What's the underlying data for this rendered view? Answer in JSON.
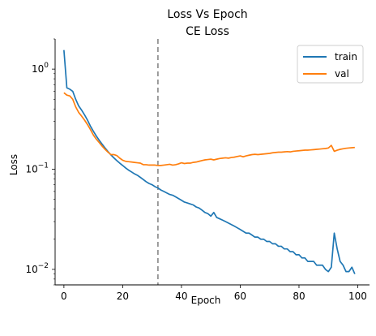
{
  "chart_data": {
    "type": "line",
    "title": "Loss Vs Epoch",
    "subtitle": "CE Loss",
    "xlabel": "Epoch",
    "ylabel": "Loss",
    "xlim": [
      -3,
      104
    ],
    "ylim": [
      0.007,
      2.0
    ],
    "yscale": "log",
    "xticks": [
      0,
      20,
      40,
      60,
      80,
      100
    ],
    "yticks": [
      {
        "value": 1,
        "base": "10",
        "exp": "0"
      },
      {
        "value": 0.1,
        "base": "10",
        "exp": "−1"
      },
      {
        "value": 0.01,
        "base": "10",
        "exp": "−2"
      }
    ],
    "grid": false,
    "legend_position": "top-right",
    "vline": {
      "x": 32,
      "color": "#7f7f7f",
      "style": "dashed"
    },
    "series": [
      {
        "name": "train",
        "color": "#1f77b4",
        "x": [
          0,
          1,
          2,
          3,
          4,
          5,
          6,
          7,
          8,
          9,
          10,
          11,
          12,
          13,
          14,
          15,
          16,
          17,
          18,
          19,
          20,
          21,
          22,
          23,
          24,
          25,
          26,
          27,
          28,
          29,
          30,
          31,
          32,
          33,
          34,
          35,
          36,
          37,
          38,
          39,
          40,
          41,
          42,
          43,
          44,
          45,
          46,
          47,
          48,
          49,
          50,
          51,
          52,
          53,
          54,
          55,
          56,
          57,
          58,
          59,
          60,
          61,
          62,
          63,
          64,
          65,
          66,
          67,
          68,
          69,
          70,
          71,
          72,
          73,
          74,
          75,
          76,
          77,
          78,
          79,
          80,
          81,
          82,
          83,
          84,
          85,
          86,
          87,
          88,
          89,
          90,
          91,
          92,
          93,
          94,
          95,
          96,
          97,
          98,
          99
        ],
        "values": [
          1.55,
          0.65,
          0.63,
          0.6,
          0.5,
          0.43,
          0.39,
          0.35,
          0.31,
          0.27,
          0.24,
          0.215,
          0.195,
          0.178,
          0.163,
          0.15,
          0.139,
          0.13,
          0.122,
          0.115,
          0.109,
          0.103,
          0.098,
          0.094,
          0.09,
          0.087,
          0.083,
          0.079,
          0.075,
          0.072,
          0.07,
          0.067,
          0.065,
          0.062,
          0.06,
          0.058,
          0.056,
          0.055,
          0.053,
          0.051,
          0.049,
          0.047,
          0.046,
          0.045,
          0.044,
          0.042,
          0.041,
          0.039,
          0.037,
          0.036,
          0.034,
          0.037,
          0.033,
          0.032,
          0.031,
          0.03,
          0.029,
          0.028,
          0.027,
          0.026,
          0.025,
          0.024,
          0.023,
          0.023,
          0.022,
          0.021,
          0.021,
          0.02,
          0.02,
          0.019,
          0.019,
          0.018,
          0.018,
          0.017,
          0.017,
          0.016,
          0.016,
          0.015,
          0.015,
          0.014,
          0.014,
          0.013,
          0.013,
          0.012,
          0.012,
          0.012,
          0.011,
          0.011,
          0.011,
          0.01,
          0.0095,
          0.0105,
          0.023,
          0.016,
          0.012,
          0.011,
          0.0095,
          0.0095,
          0.0105,
          0.009
        ]
      },
      {
        "name": "val",
        "color": "#ff7f0e",
        "x": [
          0,
          1,
          2,
          3,
          4,
          5,
          6,
          7,
          8,
          9,
          10,
          11,
          12,
          13,
          14,
          15,
          16,
          17,
          18,
          19,
          20,
          21,
          22,
          23,
          24,
          25,
          26,
          27,
          28,
          29,
          30,
          31,
          32,
          33,
          34,
          35,
          36,
          37,
          38,
          39,
          40,
          41,
          42,
          43,
          44,
          45,
          46,
          47,
          48,
          49,
          50,
          51,
          52,
          53,
          54,
          55,
          56,
          57,
          58,
          59,
          60,
          61,
          62,
          63,
          64,
          65,
          66,
          67,
          68,
          69,
          70,
          71,
          72,
          73,
          74,
          75,
          76,
          77,
          78,
          79,
          80,
          81,
          82,
          83,
          84,
          85,
          86,
          87,
          88,
          89,
          90,
          91,
          92,
          93,
          94,
          95,
          96,
          97,
          98,
          99
        ],
        "values": [
          0.58,
          0.55,
          0.54,
          0.5,
          0.42,
          0.37,
          0.34,
          0.31,
          0.28,
          0.25,
          0.22,
          0.2,
          0.185,
          0.17,
          0.158,
          0.148,
          0.14,
          0.14,
          0.137,
          0.129,
          0.123,
          0.12,
          0.119,
          0.118,
          0.117,
          0.116,
          0.115,
          0.111,
          0.111,
          0.11,
          0.11,
          0.11,
          0.109,
          0.109,
          0.11,
          0.111,
          0.112,
          0.11,
          0.111,
          0.113,
          0.116,
          0.114,
          0.115,
          0.115,
          0.117,
          0.118,
          0.12,
          0.122,
          0.124,
          0.125,
          0.126,
          0.124,
          0.126,
          0.128,
          0.129,
          0.13,
          0.129,
          0.131,
          0.132,
          0.134,
          0.136,
          0.133,
          0.136,
          0.138,
          0.14,
          0.141,
          0.14,
          0.141,
          0.142,
          0.143,
          0.144,
          0.146,
          0.147,
          0.148,
          0.148,
          0.149,
          0.15,
          0.149,
          0.151,
          0.152,
          0.153,
          0.154,
          0.155,
          0.155,
          0.156,
          0.157,
          0.158,
          0.159,
          0.16,
          0.161,
          0.163,
          0.173,
          0.151,
          0.155,
          0.158,
          0.16,
          0.162,
          0.163,
          0.164,
          0.165
        ]
      }
    ]
  }
}
